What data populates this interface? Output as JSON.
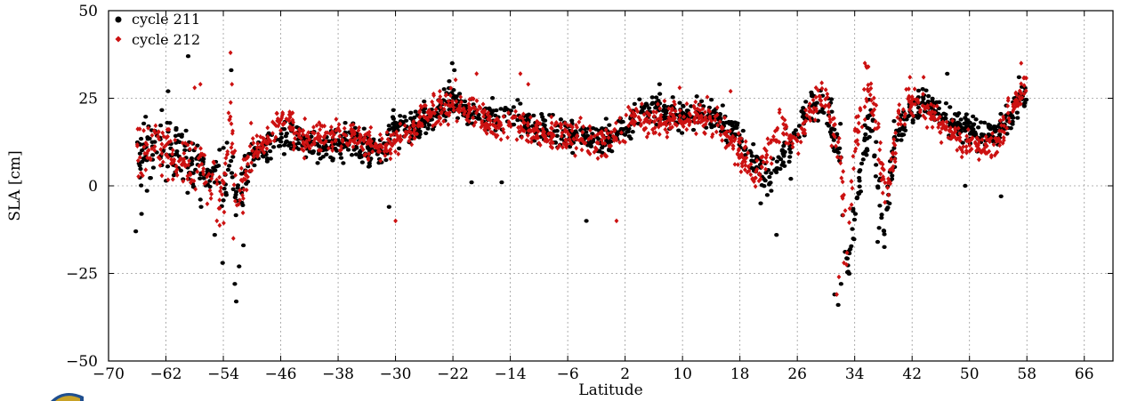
{
  "chart_data": {
    "type": "scatter",
    "title": "",
    "xlabel": "Latitude",
    "ylabel": "SLA [cm]",
    "xlim": [
      -70,
      70
    ],
    "ylim": [
      -50,
      50
    ],
    "xticks": [
      -70,
      -62,
      -54,
      -46,
      -38,
      -30,
      -22,
      -14,
      -6,
      2,
      10,
      18,
      26,
      34,
      42,
      50,
      58,
      66
    ],
    "yticks": [
      -50,
      -25,
      0,
      25,
      50
    ],
    "x_tick_labels": [
      "−70",
      "−62",
      "−54",
      "−46",
      "−38",
      "−30",
      "−22",
      "−14",
      "−6",
      "2",
      "10",
      "18",
      "26",
      "34",
      "42",
      "50",
      "58",
      "66"
    ],
    "y_tick_labels": [
      "−50",
      "−25",
      "0",
      "25",
      "50"
    ],
    "grid": true,
    "legend_position": "top-left",
    "series": [
      {
        "name": "cycle 211",
        "color": "#000000",
        "marker": "circle",
        "trend": [
          [
            -66,
            10
          ],
          [
            -64,
            9
          ],
          [
            -62,
            11
          ],
          [
            -60,
            9
          ],
          [
            -58,
            6
          ],
          [
            -56,
            3
          ],
          [
            -54,
            2
          ],
          [
            -53,
            5
          ],
          [
            -52,
            -2
          ],
          [
            -50,
            9
          ],
          [
            -48,
            10
          ],
          [
            -46,
            12
          ],
          [
            -44,
            14
          ],
          [
            -42,
            11
          ],
          [
            -40,
            10
          ],
          [
            -38,
            12
          ],
          [
            -36,
            13
          ],
          [
            -34,
            11
          ],
          [
            -32,
            10
          ],
          [
            -30,
            16
          ],
          [
            -28,
            17
          ],
          [
            -26,
            19
          ],
          [
            -24,
            21
          ],
          [
            -22,
            25
          ],
          [
            -20,
            21
          ],
          [
            -18,
            21
          ],
          [
            -16,
            19
          ],
          [
            -14,
            20
          ],
          [
            -12,
            18
          ],
          [
            -10,
            16
          ],
          [
            -8,
            15
          ],
          [
            -6,
            15
          ],
          [
            -4,
            14
          ],
          [
            -2,
            13
          ],
          [
            0,
            14
          ],
          [
            2,
            16
          ],
          [
            4,
            21
          ],
          [
            6,
            22
          ],
          [
            8,
            21
          ],
          [
            10,
            20
          ],
          [
            12,
            21
          ],
          [
            14,
            20
          ],
          [
            16,
            17
          ],
          [
            18,
            14
          ],
          [
            20,
            7
          ],
          [
            22,
            1
          ],
          [
            24,
            9
          ],
          [
            26,
            16
          ],
          [
            28,
            24
          ],
          [
            30,
            23
          ],
          [
            32,
            10
          ],
          [
            33,
            -25
          ],
          [
            34,
            -8
          ],
          [
            35,
            5
          ],
          [
            36,
            20
          ],
          [
            37,
            8
          ],
          [
            38,
            -12
          ],
          [
            39,
            5
          ],
          [
            40,
            15
          ],
          [
            42,
            22
          ],
          [
            44,
            25
          ],
          [
            46,
            20
          ],
          [
            48,
            18
          ],
          [
            50,
            16
          ],
          [
            52,
            15
          ],
          [
            54,
            15
          ],
          [
            56,
            20
          ],
          [
            58,
            27
          ]
        ],
        "points": [
          [
            -66.2,
            -13
          ],
          [
            -65.4,
            -8
          ],
          [
            -61.7,
            27
          ],
          [
            -58.9,
            37
          ],
          [
            -57.1,
            -6
          ],
          [
            -55.2,
            -14
          ],
          [
            -54.1,
            -22
          ],
          [
            -52.9,
            33
          ],
          [
            -52.4,
            -28
          ],
          [
            -52.2,
            -33
          ],
          [
            -51.8,
            -23
          ],
          [
            -51.2,
            -17
          ],
          [
            -30.9,
            -6
          ],
          [
            -22.1,
            35
          ],
          [
            -21.8,
            33
          ],
          [
            -19.4,
            1
          ],
          [
            -15.2,
            1
          ],
          [
            -3.4,
            -10
          ],
          [
            6.8,
            29
          ],
          [
            20.9,
            -5
          ],
          [
            23.1,
            -14
          ],
          [
            25.1,
            2
          ],
          [
            31.7,
            -34
          ],
          [
            31.2,
            -31
          ],
          [
            32.1,
            -28
          ],
          [
            34.1,
            -8
          ],
          [
            37.2,
            -16
          ],
          [
            37.4,
            -12
          ],
          [
            46.9,
            32
          ],
          [
            49.4,
            0
          ],
          [
            54.4,
            -3
          ],
          [
            56.9,
            31
          ]
        ]
      },
      {
        "name": "cycle 212",
        "color": "#cc1111",
        "marker": "diamond",
        "trend": [
          [
            -66,
            12
          ],
          [
            -64,
            11
          ],
          [
            -62,
            10
          ],
          [
            -60,
            8
          ],
          [
            -58,
            5
          ],
          [
            -56,
            2
          ],
          [
            -54,
            -3
          ],
          [
            -53,
            20
          ],
          [
            -52,
            -8
          ],
          [
            -50,
            10
          ],
          [
            -48,
            12
          ],
          [
            -46,
            20
          ],
          [
            -44,
            15
          ],
          [
            -42,
            13
          ],
          [
            -40,
            14
          ],
          [
            -38,
            15
          ],
          [
            -36,
            14
          ],
          [
            -34,
            12
          ],
          [
            -32,
            11
          ],
          [
            -30,
            12
          ],
          [
            -28,
            15
          ],
          [
            -26,
            20
          ],
          [
            -24,
            22
          ],
          [
            -22,
            24
          ],
          [
            -20,
            22
          ],
          [
            -18,
            20
          ],
          [
            -16,
            17
          ],
          [
            -14,
            19
          ],
          [
            -12,
            17
          ],
          [
            -10,
            15
          ],
          [
            -8,
            14
          ],
          [
            -6,
            14
          ],
          [
            -4,
            13
          ],
          [
            -2,
            12
          ],
          [
            0,
            13
          ],
          [
            2,
            17
          ],
          [
            4,
            20
          ],
          [
            6,
            18
          ],
          [
            8,
            20
          ],
          [
            10,
            19
          ],
          [
            12,
            20
          ],
          [
            14,
            19
          ],
          [
            16,
            15
          ],
          [
            18,
            10
          ],
          [
            20,
            1
          ],
          [
            22,
            10
          ],
          [
            24,
            17
          ],
          [
            26,
            12
          ],
          [
            28,
            22
          ],
          [
            30,
            26
          ],
          [
            32,
            8
          ],
          [
            33,
            -22
          ],
          [
            34,
            15
          ],
          [
            36,
            30
          ],
          [
            37,
            18
          ],
          [
            38,
            2
          ],
          [
            39,
            0
          ],
          [
            40,
            20
          ],
          [
            42,
            24
          ],
          [
            44,
            22
          ],
          [
            46,
            18
          ],
          [
            48,
            14
          ],
          [
            50,
            12
          ],
          [
            52,
            11
          ],
          [
            54,
            13
          ],
          [
            56,
            22
          ],
          [
            58,
            30
          ]
        ],
        "points": [
          [
            -58.0,
            28
          ],
          [
            -57.2,
            29
          ],
          [
            -54.9,
            -10
          ],
          [
            -53.0,
            38
          ],
          [
            -52.8,
            29
          ],
          [
            -52.6,
            -15
          ],
          [
            -30.0,
            -10
          ],
          [
            -18.7,
            32
          ],
          [
            -12.6,
            32
          ],
          [
            -11.5,
            29
          ],
          [
            0.8,
            -10
          ],
          [
            9.6,
            28
          ],
          [
            16.7,
            27
          ],
          [
            28.6,
            28
          ],
          [
            31.5,
            -31
          ],
          [
            31.8,
            -26
          ],
          [
            32.5,
            -22
          ],
          [
            35.9,
            34
          ],
          [
            41.7,
            31
          ],
          [
            43.6,
            31
          ],
          [
            55.4,
            25
          ],
          [
            57.2,
            35
          ]
        ]
      }
    ]
  }
}
